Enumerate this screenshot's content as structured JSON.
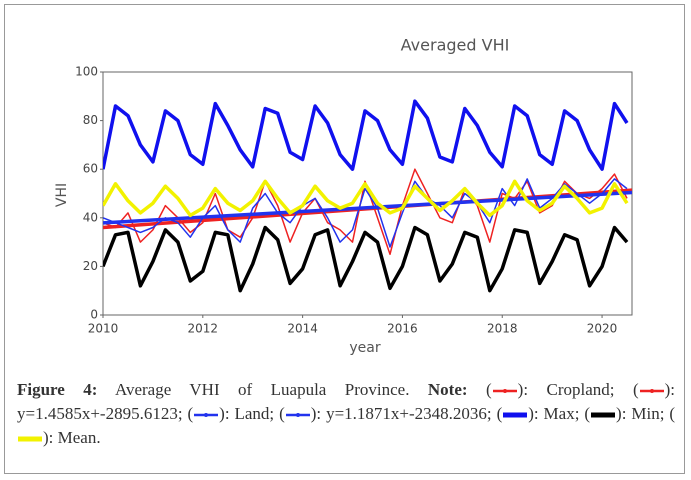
{
  "chart_data": {
    "type": "line",
    "title": "Averaged VHI",
    "xlabel": "year",
    "ylabel": "VHI",
    "xlim": [
      2010,
      2020.6
    ],
    "xticks": [
      2010,
      2012,
      2014,
      2016,
      2018,
      2020
    ],
    "ylim": [
      0,
      100
    ],
    "yticks": [
      0,
      20,
      40,
      60,
      80,
      100
    ],
    "grid": false,
    "x": [
      2010,
      2010.25,
      2010.5,
      2010.75,
      2011,
      2011.25,
      2011.5,
      2011.75,
      2012,
      2012.25,
      2012.5,
      2012.75,
      2013,
      2013.25,
      2013.5,
      2013.75,
      2014,
      2014.25,
      2014.5,
      2014.75,
      2015,
      2015.25,
      2015.5,
      2015.75,
      2016,
      2016.25,
      2016.5,
      2016.75,
      2017,
      2017.25,
      2017.5,
      2017.75,
      2018,
      2018.25,
      2018.5,
      2018.75,
      2019,
      2019.25,
      2019.5,
      2019.75,
      2020,
      2020.25,
      2020.5
    ],
    "series": [
      {
        "name": "Cropland",
        "color": "#ee2222",
        "line_width": 1.5,
        "markers": true,
        "values": [
          38,
          36,
          42,
          30,
          35,
          45,
          40,
          34,
          38,
          50,
          35,
          32,
          40,
          55,
          45,
          30,
          42,
          48,
          38,
          35,
          30,
          55,
          40,
          25,
          45,
          60,
          50,
          40,
          38,
          52,
          45,
          30,
          50,
          48,
          55,
          42,
          45,
          55,
          50,
          48,
          52,
          58,
          48
        ]
      },
      {
        "name": "y=1.4585x+-2895.6123",
        "color": "#ee2222",
        "line_width": 3.5,
        "markers": true,
        "x": [
          2010,
          2020.6
        ],
        "values": [
          36.0,
          51.4
        ]
      },
      {
        "name": "Land",
        "color": "#2233ee",
        "line_width": 1.5,
        "markers": true,
        "values": [
          40,
          38,
          36,
          34,
          36,
          40,
          38,
          32,
          40,
          45,
          35,
          30,
          44,
          50,
          42,
          38,
          45,
          48,
          40,
          30,
          35,
          52,
          44,
          28,
          42,
          55,
          48,
          45,
          40,
          50,
          46,
          38,
          52,
          45,
          56,
          44,
          48,
          54,
          50,
          46,
          50,
          56,
          52
        ]
      },
      {
        "name": "y=1.1871x+-2348.2036",
        "color": "#2233ee",
        "line_width": 3.5,
        "markers": true,
        "x": [
          2010,
          2020.6
        ],
        "values": [
          37.9,
          50.4
        ]
      },
      {
        "name": "Max",
        "color": "#1010ee",
        "line_width": 3.5,
        "markers": false,
        "values": [
          60,
          86,
          82,
          70,
          63,
          84,
          80,
          66,
          62,
          87,
          78,
          68,
          61,
          85,
          83,
          67,
          64,
          86,
          79,
          66,
          60,
          84,
          80,
          68,
          62,
          88,
          81,
          65,
          63,
          85,
          78,
          67,
          61,
          86,
          82,
          66,
          62,
          84,
          80,
          68,
          60,
          87,
          79
        ]
      },
      {
        "name": "Min",
        "color": "#000000",
        "line_width": 3.5,
        "markers": false,
        "values": [
          20,
          33,
          34,
          12,
          22,
          35,
          30,
          14,
          18,
          34,
          33,
          10,
          21,
          36,
          31,
          13,
          19,
          33,
          35,
          12,
          22,
          34,
          30,
          11,
          20,
          36,
          33,
          14,
          21,
          34,
          32,
          10,
          19,
          35,
          34,
          13,
          22,
          33,
          31,
          12,
          20,
          36,
          30
        ]
      },
      {
        "name": "Mean",
        "color": "#f2f200",
        "line_width": 3.5,
        "markers": false,
        "values": [
          45,
          54,
          47,
          42,
          46,
          53,
          48,
          41,
          44,
          52,
          46,
          43,
          47,
          55,
          48,
          42,
          45,
          53,
          47,
          44,
          46,
          54,
          46,
          42,
          44,
          53,
          48,
          43,
          47,
          52,
          46,
          41,
          45,
          55,
          47,
          43,
          46,
          53,
          48,
          42,
          44,
          54,
          46
        ]
      }
    ]
  },
  "caption": {
    "figure": "Figure 4:",
    "text": "Average VHI of Luapula Province.",
    "note": "Note:",
    "entry_open": "(",
    "entry_close": "):",
    "entry_sep": ";",
    "end": "."
  }
}
